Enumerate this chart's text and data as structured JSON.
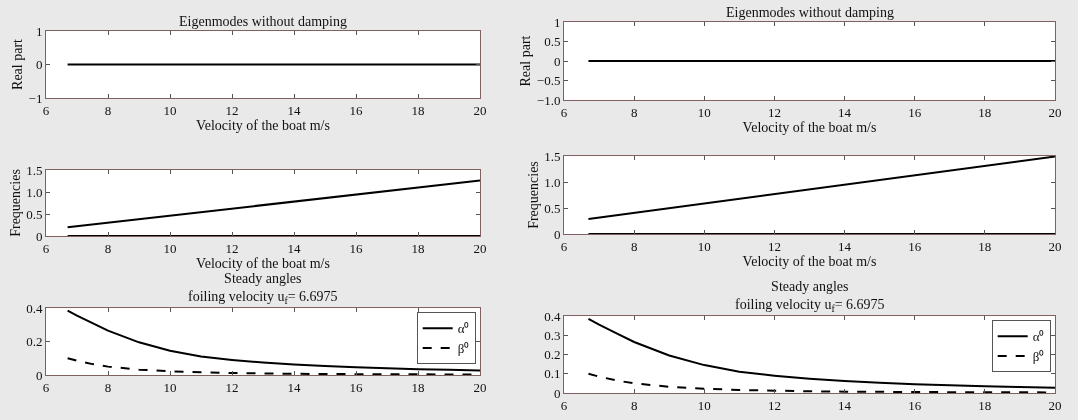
{
  "chart_data": [
    {
      "type": "line",
      "title": "Eigenmodes without damping",
      "xlabel": "Velocity of the boat m/s",
      "ylabel": "Real part",
      "xlim": [
        6,
        20
      ],
      "ylim": [
        -1,
        1
      ],
      "xticks": [
        6,
        8,
        10,
        12,
        14,
        16,
        18,
        20
      ],
      "yticks": [
        {
          "value": -1,
          "label": "−1"
        },
        0,
        1
      ],
      "series": [
        {
          "color": "#000000",
          "x": [
            6.6975,
            20
          ],
          "values": [
            0,
            0
          ]
        }
      ]
    },
    {
      "type": "line",
      "xlabel": "Velocity of the boat m/s",
      "ylabel": "Frequencies",
      "xlim": [
        6,
        20
      ],
      "ylim": [
        0,
        1.5
      ],
      "xticks": [
        6,
        8,
        10,
        12,
        14,
        16,
        18,
        20
      ],
      "yticks": [
        0,
        0.5,
        {
          "value": 1,
          "label": "1.0"
        },
        1.5
      ],
      "series": [
        {
          "color": "#000000",
          "x": [
            6.6975,
            20
          ],
          "values": [
            0.2,
            1.26
          ]
        },
        {
          "color": "#000000",
          "x": [
            6.6975,
            20
          ],
          "values": [
            0,
            0
          ]
        }
      ]
    },
    {
      "type": "line",
      "title": "Steady angles",
      "subtitle": "foiling velocity u$_{f}$= 6.6975",
      "xlim": [
        6,
        20
      ],
      "ylim": [
        0,
        0.4
      ],
      "xticks": [
        6,
        8,
        10,
        12,
        14,
        16,
        18,
        20
      ],
      "yticks": [
        0,
        0.2,
        0.4
      ],
      "legend": "top right",
      "series": [
        {
          "name": "α⁰",
          "color": "#000000",
          "line_style": "solid",
          "x": [
            6.6975,
            7,
            7.5,
            8,
            9,
            10,
            11,
            12,
            13,
            14,
            15,
            16,
            17,
            18,
            19,
            20
          ],
          "values": [
            0.385,
            0.355,
            0.31,
            0.265,
            0.195,
            0.145,
            0.11,
            0.09,
            0.074,
            0.062,
            0.053,
            0.046,
            0.04,
            0.035,
            0.031,
            0.027
          ]
        },
        {
          "name": "β⁰",
          "color": "#000000",
          "line_style": "dashed",
          "x": [
            6.6975,
            7,
            7.5,
            8,
            9,
            10,
            11,
            12,
            13,
            14,
            16,
            18,
            20
          ],
          "values": [
            0.1,
            0.085,
            0.065,
            0.05,
            0.032,
            0.022,
            0.016,
            0.012,
            0.009,
            0.007,
            0.005,
            0.004,
            0.003
          ]
        }
      ]
    },
    {
      "type": "line",
      "title": "Eigenmodes without damping",
      "xlabel": "Velocity of the boat m/s",
      "ylabel": "Real part",
      "xlim": [
        6,
        20
      ],
      "ylim": [
        -1,
        1
      ],
      "xticks": [
        6,
        8,
        10,
        12,
        14,
        16,
        18,
        20
      ],
      "yticks": [
        {
          "value": -1,
          "label": "−1.0"
        },
        {
          "value": -0.5,
          "label": "−0.5"
        },
        0,
        0.5,
        1
      ],
      "series": [
        {
          "color": "#000000",
          "x": [
            6.6975,
            20
          ],
          "values": [
            0,
            0
          ]
        }
      ]
    },
    {
      "type": "line",
      "xlabel": "Velocity of the boat m/s",
      "ylabel": "Frequencies",
      "xlim": [
        6,
        20
      ],
      "ylim": [
        0,
        1.5
      ],
      "xticks": [
        6,
        8,
        10,
        12,
        14,
        16,
        18,
        20
      ],
      "yticks": [
        0,
        0.5,
        {
          "value": 1,
          "label": "1.0"
        },
        1.5
      ],
      "series": [
        {
          "color": "#000000",
          "x": [
            6.6975,
            20
          ],
          "values": [
            0.29,
            1.49
          ]
        },
        {
          "color": "#000000",
          "x": [
            6.6975,
            20
          ],
          "values": [
            0,
            0
          ]
        }
      ]
    },
    {
      "type": "line",
      "title": "Steady angles",
      "subtitle": "foiling velocity u$_{f}$= 6.6975",
      "xlim": [
        6,
        20
      ],
      "ylim": [
        0,
        0.4
      ],
      "xticks": [
        6,
        8,
        10,
        12,
        14,
        16,
        18,
        20
      ],
      "yticks": [
        0,
        0.1,
        0.2,
        0.3,
        0.4
      ],
      "legend": "top right",
      "series": [
        {
          "name": "α⁰",
          "color": "#000000",
          "line_style": "solid",
          "x": [
            6.6975,
            7,
            7.5,
            8,
            9,
            10,
            11,
            12,
            13,
            14,
            15,
            16,
            17,
            18,
            19,
            20
          ],
          "values": [
            0.385,
            0.355,
            0.31,
            0.265,
            0.195,
            0.145,
            0.11,
            0.09,
            0.074,
            0.062,
            0.053,
            0.046,
            0.04,
            0.035,
            0.031,
            0.027
          ]
        },
        {
          "name": "β⁰",
          "color": "#000000",
          "line_style": "dashed",
          "x": [
            6.6975,
            7,
            7.5,
            8,
            9,
            10,
            11,
            12,
            13,
            14,
            16,
            18,
            20
          ],
          "values": [
            0.1,
            0.085,
            0.065,
            0.05,
            0.032,
            0.022,
            0.016,
            0.012,
            0.009,
            0.007,
            0.005,
            0.004,
            0.003
          ]
        }
      ]
    }
  ]
}
